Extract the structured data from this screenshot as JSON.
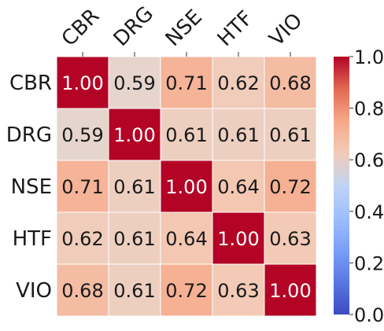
{
  "chart_data": {
    "type": "heatmap",
    "title": "",
    "xlabel": "",
    "ylabel": "",
    "x_labels": [
      "CBR",
      "DRG",
      "NSE",
      "HTF",
      "VIO"
    ],
    "y_labels": [
      "CBR",
      "DRG",
      "NSE",
      "HTF",
      "VIO"
    ],
    "values": [
      [
        1.0,
        0.59,
        0.71,
        0.62,
        0.68
      ],
      [
        0.59,
        1.0,
        0.61,
        0.61,
        0.61
      ],
      [
        0.71,
        0.61,
        1.0,
        0.64,
        0.72
      ],
      [
        0.62,
        0.61,
        0.64,
        1.0,
        0.63
      ],
      [
        0.68,
        0.61,
        0.72,
        0.63,
        1.0
      ]
    ],
    "value_format": "0.00",
    "colormap": "coolwarm",
    "vmin": 0.0,
    "vmax": 1.0,
    "colorbar_ticks": [
      "0.0",
      "0.2",
      "0.4",
      "0.6",
      "0.8",
      "1.0"
    ],
    "colors": {
      "cell_border": "#ffffff",
      "label_text": "#1a1a1a"
    }
  }
}
